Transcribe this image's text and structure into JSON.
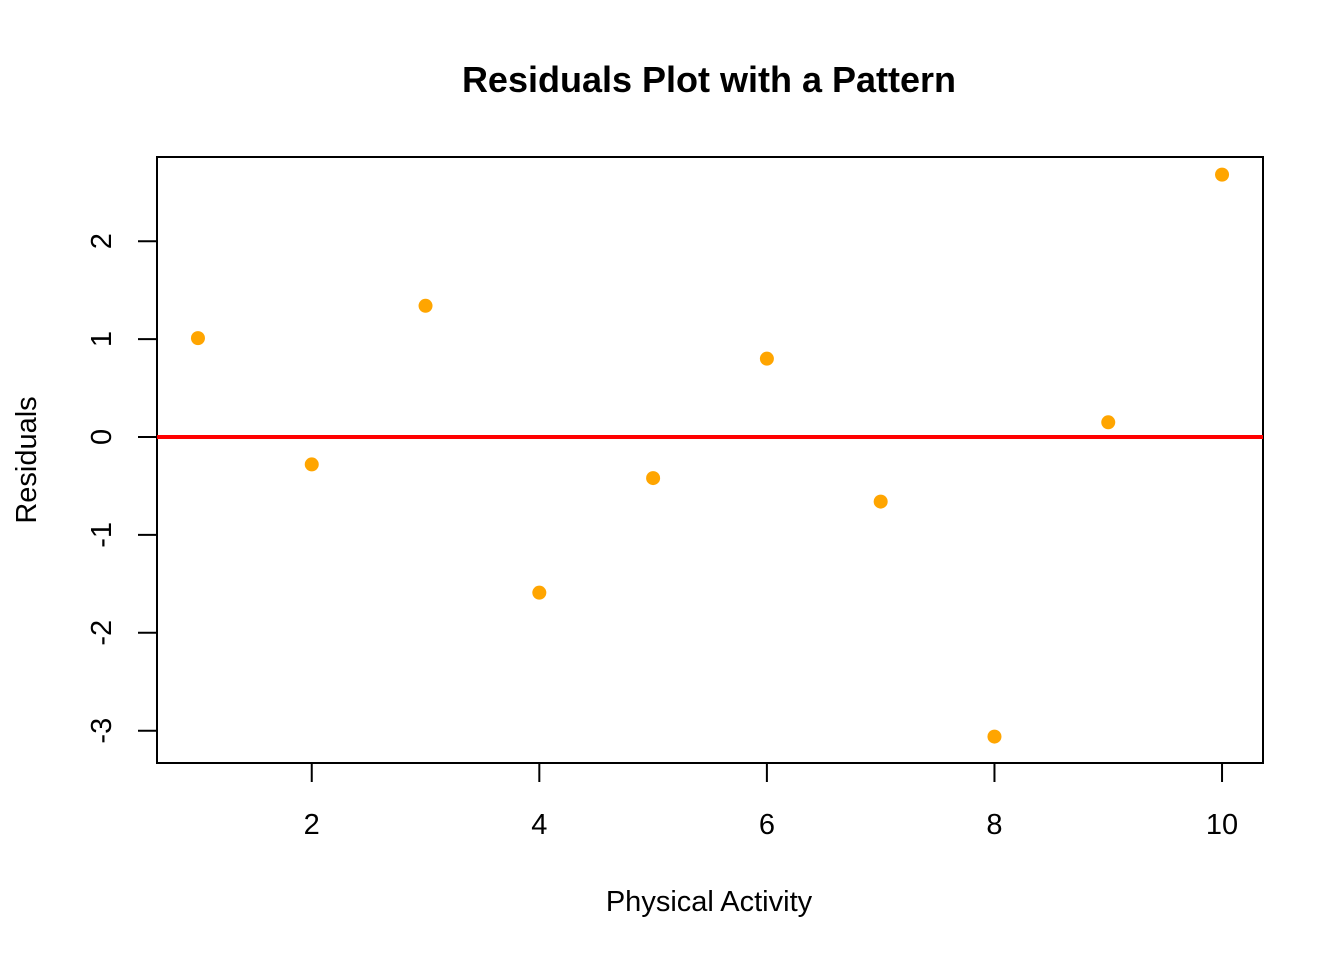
{
  "chart_data": {
    "type": "scatter",
    "title": "Residuals Plot with a Pattern",
    "xlabel": "Physical Activity",
    "ylabel": "Residuals",
    "xlim": [
      0.64,
      10.36
    ],
    "ylim": [
      -3.33,
      2.86
    ],
    "x_ticks": [
      2,
      4,
      6,
      8,
      10
    ],
    "y_ticks": [
      -3,
      -2,
      -1,
      0,
      1,
      2
    ],
    "x_tick_labels": [
      "2",
      "4",
      "6",
      "8",
      "10"
    ],
    "y_tick_labels": [
      "-3",
      "-2",
      "-1",
      "0",
      "1",
      "2"
    ],
    "grid": false,
    "legend": "none",
    "reference_line": {
      "y": 0,
      "color": "#ff0000"
    },
    "point_color": "#ffa500",
    "series": [
      {
        "x": [
          1,
          2,
          3,
          4,
          5,
          6,
          7,
          8,
          9,
          10
        ],
        "y": [
          1.01,
          -0.28,
          1.34,
          -1.59,
          -0.42,
          0.8,
          -0.66,
          -3.06,
          0.15,
          2.68
        ]
      }
    ]
  }
}
